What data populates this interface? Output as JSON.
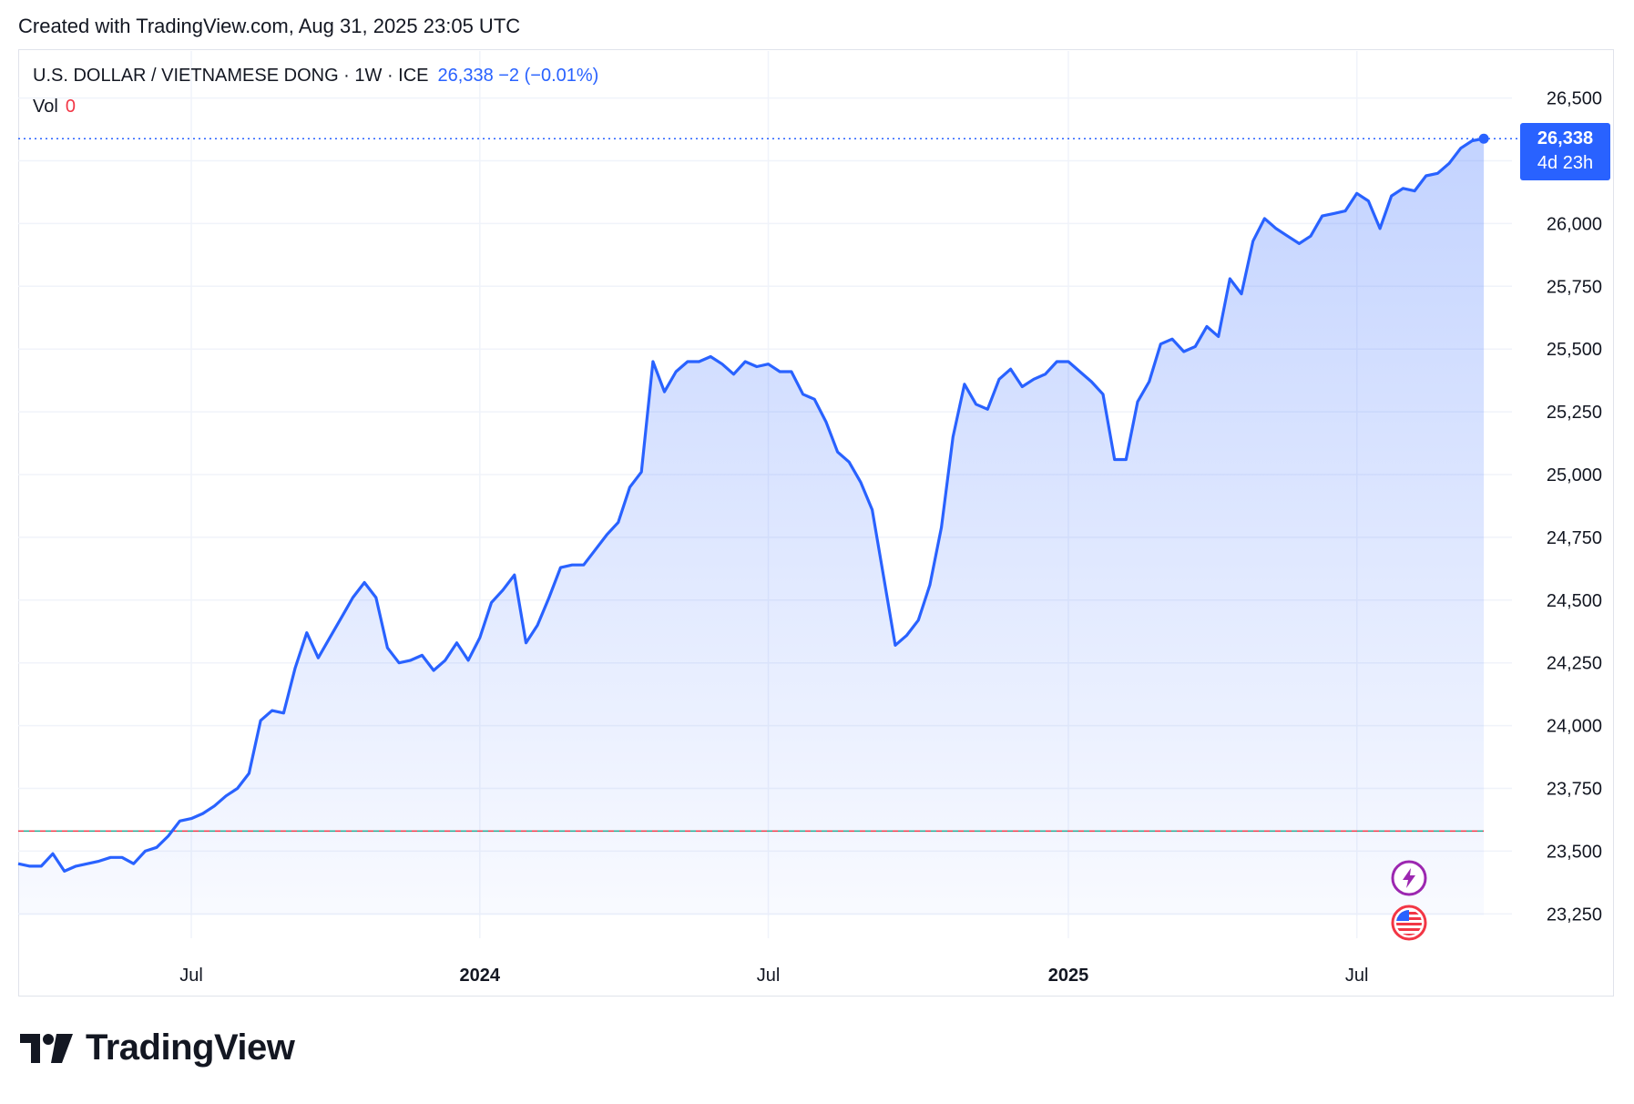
{
  "header": {
    "created_text": "Created with TradingView.com, Aug 31, 2025 23:05 UTC"
  },
  "legend": {
    "symbol": "U.S. DOLLAR / VIETNAMESE DONG · 1W · ICE",
    "price_change": "26,338 −2 (−0.01%)",
    "vol_label": "Vol",
    "vol_value": "0"
  },
  "price_tag": {
    "price": "26,338",
    "countdown": "4d 23h"
  },
  "brand": {
    "name": "TradingView"
  },
  "colors": {
    "line": "#2962ff",
    "fill": "#2962ff",
    "grid": "#f0f3fa",
    "baseline_up": "#22ab94",
    "baseline_down": "#f23645",
    "event_dividend": "#9c27b0",
    "event_flag": "#f23645"
  },
  "icons": {
    "event_1": "lightning-icon",
    "event_2": "us-flag-icon"
  },
  "chart_data": {
    "type": "area",
    "title": "U.S. DOLLAR / VIETNAMESE DONG · 1W · ICE",
    "xlabel": "",
    "ylabel": "",
    "ylim": [
      23100,
      26650
    ],
    "grid": true,
    "x_ticks": [
      {
        "label": "Jul",
        "bold": false,
        "week": 15
      },
      {
        "label": "2024",
        "bold": true,
        "week": 40
      },
      {
        "label": "Jul",
        "bold": false,
        "week": 65
      },
      {
        "label": "2025",
        "bold": true,
        "week": 91
      },
      {
        "label": "Jul",
        "bold": false,
        "week": 116
      }
    ],
    "y_ticks": [
      26500,
      26000,
      25750,
      25500,
      25250,
      25000,
      24750,
      24500,
      24250,
      24000,
      23750,
      23500,
      23250
    ],
    "y_tick_labels": [
      "26,500",
      "26,000",
      "25,750",
      "25,500",
      "25,250",
      "25,000",
      "24,750",
      "24,500",
      "24,250",
      "24,000",
      "23,750",
      "23,500",
      "23,250"
    ],
    "baseline": 23580,
    "last_value": 26338,
    "series": [
      {
        "name": "USD/VND",
        "values": [
          23450,
          23440,
          23440,
          23490,
          23420,
          23440,
          23450,
          23460,
          23475,
          23475,
          23450,
          23500,
          23515,
          23560,
          23620,
          23630,
          23650,
          23680,
          23720,
          23750,
          23810,
          24020,
          24060,
          24050,
          24230,
          24370,
          24270,
          24350,
          24430,
          24510,
          24570,
          24510,
          24310,
          24250,
          24260,
          24280,
          24220,
          24260,
          24330,
          24260,
          24350,
          24490,
          24540,
          24600,
          24330,
          24400,
          24510,
          24630,
          24640,
          24640,
          24700,
          24760,
          24810,
          24950,
          25010,
          25450,
          25330,
          25410,
          25450,
          25450,
          25470,
          25440,
          25400,
          25450,
          25430,
          25440,
          25410,
          25410,
          25320,
          25300,
          25210,
          25090,
          25050,
          24970,
          24860,
          24590,
          24320,
          24360,
          24420,
          24560,
          24790,
          25150,
          25360,
          25280,
          25260,
          25380,
          25420,
          25350,
          25380,
          25400,
          25450,
          25450,
          25410,
          25370,
          25320,
          25060,
          25060,
          25290,
          25370,
          25520,
          25540,
          25490,
          25510,
          25590,
          25550,
          25780,
          25720,
          25930,
          26020,
          25980,
          25950,
          25920,
          25950,
          26030,
          26040,
          26050,
          26120,
          26090,
          25980,
          26110,
          26140,
          26130,
          26190,
          26200,
          26240,
          26300,
          26330,
          26338
        ]
      }
    ]
  }
}
